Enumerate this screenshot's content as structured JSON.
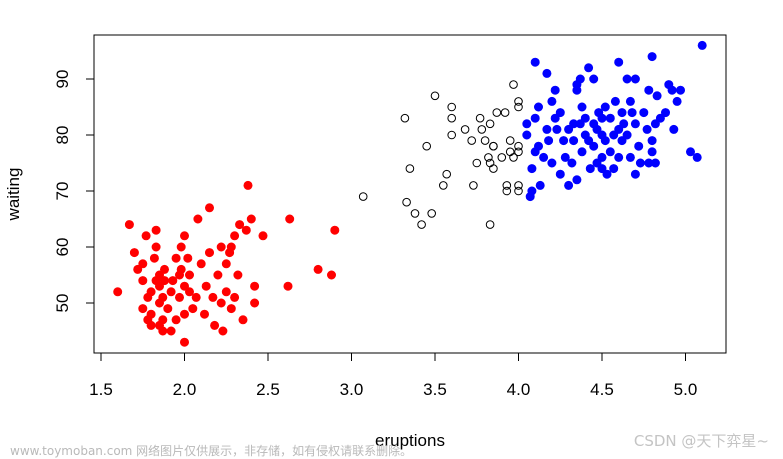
{
  "chart_data": {
    "type": "scatter",
    "xlabel": "eruptions",
    "ylabel": "waiting",
    "xlim": [
      1.5,
      5.1
    ],
    "ylim": [
      42,
      96
    ],
    "xticks": [
      "1.5",
      "2.0",
      "2.5",
      "3.0",
      "3.5",
      "4.0",
      "4.5",
      "5.0"
    ],
    "yticks": [
      "50",
      "60",
      "70",
      "80",
      "90"
    ],
    "grid": false,
    "legend": "none",
    "series": [
      {
        "color": "#ff0000",
        "marker": "filled-circle",
        "points": [
          [
            1.6,
            52
          ],
          [
            1.67,
            64
          ],
          [
            1.7,
            59
          ],
          [
            1.72,
            56
          ],
          [
            1.75,
            54
          ],
          [
            1.75,
            49
          ],
          [
            1.75,
            57
          ],
          [
            1.77,
            62
          ],
          [
            1.78,
            51
          ],
          [
            1.78,
            47
          ],
          [
            1.8,
            46
          ],
          [
            1.8,
            48
          ],
          [
            1.8,
            52
          ],
          [
            1.82,
            58
          ],
          [
            1.83,
            54
          ],
          [
            1.83,
            60
          ],
          [
            1.83,
            63
          ],
          [
            1.85,
            46
          ],
          [
            1.85,
            50
          ],
          [
            1.85,
            53
          ],
          [
            1.85,
            55
          ],
          [
            1.87,
            45
          ],
          [
            1.87,
            47
          ],
          [
            1.87,
            51
          ],
          [
            1.88,
            54
          ],
          [
            1.88,
            56
          ],
          [
            1.9,
            49
          ],
          [
            1.92,
            45
          ],
          [
            1.92,
            52
          ],
          [
            1.93,
            54
          ],
          [
            1.95,
            58
          ],
          [
            1.95,
            47
          ],
          [
            1.97,
            51
          ],
          [
            1.97,
            55
          ],
          [
            1.98,
            56
          ],
          [
            1.98,
            60
          ],
          [
            2.0,
            43
          ],
          [
            2.0,
            48
          ],
          [
            2.0,
            53
          ],
          [
            2.0,
            62
          ],
          [
            2.02,
            58
          ],
          [
            2.03,
            55
          ],
          [
            2.03,
            52
          ],
          [
            2.05,
            49
          ],
          [
            2.07,
            51
          ],
          [
            2.08,
            65
          ],
          [
            2.1,
            57
          ],
          [
            2.12,
            48
          ],
          [
            2.13,
            53
          ],
          [
            2.15,
            59
          ],
          [
            2.15,
            67
          ],
          [
            2.17,
            51
          ],
          [
            2.18,
            46
          ],
          [
            2.2,
            55
          ],
          [
            2.22,
            50
          ],
          [
            2.22,
            60
          ],
          [
            2.23,
            45
          ],
          [
            2.25,
            52
          ],
          [
            2.25,
            57
          ],
          [
            2.27,
            59
          ],
          [
            2.28,
            60
          ],
          [
            2.28,
            49
          ],
          [
            2.3,
            62
          ],
          [
            2.3,
            51
          ],
          [
            2.32,
            55
          ],
          [
            2.33,
            64
          ],
          [
            2.35,
            47
          ],
          [
            2.37,
            63
          ],
          [
            2.38,
            71
          ],
          [
            2.4,
            65
          ],
          [
            2.42,
            50
          ],
          [
            2.42,
            53
          ],
          [
            2.47,
            62
          ],
          [
            2.62,
            53
          ],
          [
            2.63,
            65
          ],
          [
            2.8,
            56
          ],
          [
            2.88,
            55
          ],
          [
            2.9,
            63
          ]
        ]
      },
      {
        "color": "#000000",
        "marker": "open-circle",
        "points": [
          [
            3.07,
            69
          ],
          [
            3.32,
            83
          ],
          [
            3.33,
            68
          ],
          [
            3.35,
            74
          ],
          [
            3.38,
            66
          ],
          [
            3.42,
            64
          ],
          [
            3.45,
            78
          ],
          [
            3.48,
            66
          ],
          [
            3.5,
            87
          ],
          [
            3.55,
            71
          ],
          [
            3.57,
            73
          ],
          [
            3.6,
            83
          ],
          [
            3.6,
            85
          ],
          [
            3.6,
            80
          ],
          [
            3.68,
            81
          ],
          [
            3.72,
            79
          ],
          [
            3.73,
            71
          ],
          [
            3.75,
            75
          ],
          [
            3.77,
            83
          ],
          [
            3.78,
            81
          ],
          [
            3.8,
            79
          ],
          [
            3.82,
            76
          ],
          [
            3.83,
            82
          ],
          [
            3.83,
            75
          ],
          [
            3.83,
            64
          ],
          [
            3.85,
            78
          ],
          [
            3.85,
            74
          ],
          [
            3.85,
            78
          ],
          [
            3.87,
            84
          ],
          [
            3.9,
            76
          ],
          [
            3.92,
            84
          ],
          [
            3.93,
            71
          ],
          [
            3.93,
            70
          ],
          [
            3.95,
            79
          ],
          [
            3.95,
            77
          ],
          [
            3.97,
            89
          ],
          [
            3.97,
            76
          ],
          [
            4.0,
            86
          ],
          [
            4.0,
            85
          ],
          [
            4.0,
            78
          ],
          [
            4.0,
            77
          ],
          [
            4.0,
            71
          ],
          [
            4.0,
            70
          ]
        ]
      },
      {
        "color": "#0000ff",
        "marker": "filled-circle",
        "points": [
          [
            4.05,
            80
          ],
          [
            4.05,
            82
          ],
          [
            4.07,
            69
          ],
          [
            4.08,
            70
          ],
          [
            4.08,
            74
          ],
          [
            4.1,
            93
          ],
          [
            4.1,
            83
          ],
          [
            4.1,
            77
          ],
          [
            4.12,
            78
          ],
          [
            4.12,
            85
          ],
          [
            4.13,
            71
          ],
          [
            4.15,
            76
          ],
          [
            4.17,
            81
          ],
          [
            4.17,
            91
          ],
          [
            4.18,
            79
          ],
          [
            4.2,
            86
          ],
          [
            4.2,
            75
          ],
          [
            4.22,
            88
          ],
          [
            4.22,
            83
          ],
          [
            4.23,
            81
          ],
          [
            4.25,
            73
          ],
          [
            4.25,
            84
          ],
          [
            4.27,
            79
          ],
          [
            4.28,
            76
          ],
          [
            4.3,
            81
          ],
          [
            4.3,
            71
          ],
          [
            4.32,
            75
          ],
          [
            4.33,
            79
          ],
          [
            4.33,
            82
          ],
          [
            4.35,
            88
          ],
          [
            4.35,
            72
          ],
          [
            4.35,
            89
          ],
          [
            4.37,
            90
          ],
          [
            4.37,
            82
          ],
          [
            4.38,
            77
          ],
          [
            4.38,
            85
          ],
          [
            4.4,
            80
          ],
          [
            4.4,
            83
          ],
          [
            4.42,
            92
          ],
          [
            4.42,
            79
          ],
          [
            4.43,
            74
          ],
          [
            4.45,
            90
          ],
          [
            4.45,
            82
          ],
          [
            4.45,
            78
          ],
          [
            4.47,
            81
          ],
          [
            4.47,
            75
          ],
          [
            4.48,
            84
          ],
          [
            4.5,
            76
          ],
          [
            4.5,
            80
          ],
          [
            4.5,
            83
          ],
          [
            4.5,
            74
          ],
          [
            4.52,
            79
          ],
          [
            4.52,
            85
          ],
          [
            4.53,
            73
          ],
          [
            4.55,
            77
          ],
          [
            4.55,
            83
          ],
          [
            4.57,
            80
          ],
          [
            4.57,
            74
          ],
          [
            4.58,
            86
          ],
          [
            4.6,
            81
          ],
          [
            4.6,
            76
          ],
          [
            4.6,
            93
          ],
          [
            4.62,
            84
          ],
          [
            4.62,
            79
          ],
          [
            4.63,
            82
          ],
          [
            4.65,
            80
          ],
          [
            4.65,
            90
          ],
          [
            4.67,
            76
          ],
          [
            4.67,
            86
          ],
          [
            4.68,
            84
          ],
          [
            4.7,
            73
          ],
          [
            4.7,
            82
          ],
          [
            4.7,
            90
          ],
          [
            4.72,
            78
          ],
          [
            4.73,
            75
          ],
          [
            4.75,
            84
          ],
          [
            4.77,
            81
          ],
          [
            4.78,
            75
          ],
          [
            4.78,
            88
          ],
          [
            4.8,
            94
          ],
          [
            4.8,
            77
          ],
          [
            4.8,
            79
          ],
          [
            4.82,
            82
          ],
          [
            4.82,
            75
          ],
          [
            4.83,
            87
          ],
          [
            4.85,
            83
          ],
          [
            4.88,
            84
          ],
          [
            4.9,
            89
          ],
          [
            4.92,
            88
          ],
          [
            4.93,
            81
          ],
          [
            4.95,
            86
          ],
          [
            4.97,
            88
          ],
          [
            5.03,
            77
          ],
          [
            5.07,
            76
          ],
          [
            5.1,
            96
          ]
        ]
      }
    ]
  },
  "watermark": {
    "left": "www.toymoban.com 网络图片仅供展示，非存储，如有侵权请联系删除。",
    "right": "CSDN @天下弈星~"
  }
}
